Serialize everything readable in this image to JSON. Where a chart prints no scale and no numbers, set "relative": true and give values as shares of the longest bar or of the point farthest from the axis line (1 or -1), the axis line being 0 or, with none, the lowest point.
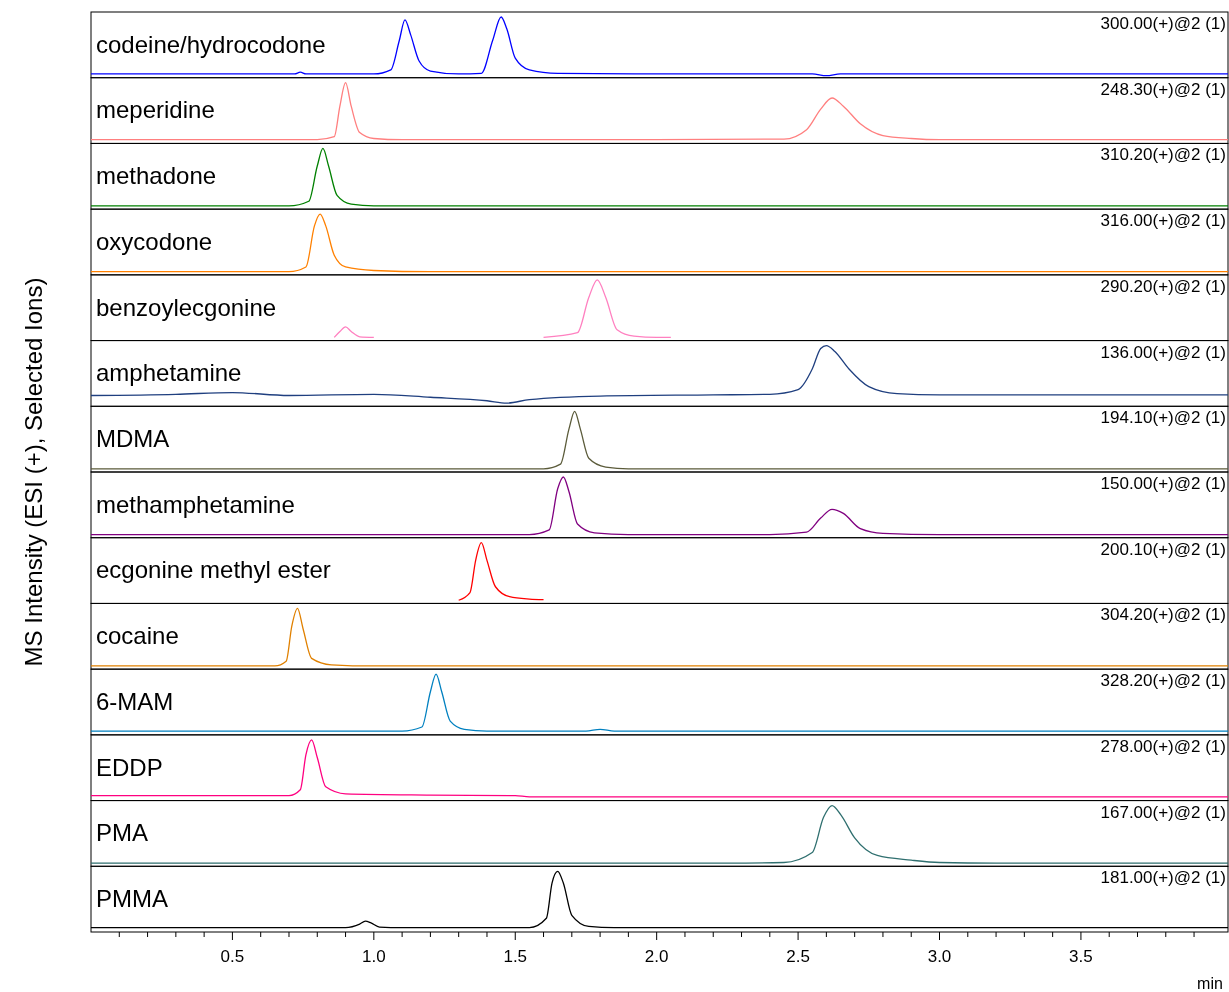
{
  "chart_data": [
    {
      "type": "line",
      "relative": true,
      "title": "codeine/hydrocodone",
      "annotations": [
        "300.00(+)@2 (1)"
      ],
      "color": "#0000ff",
      "xlim": [
        0,
        4.02
      ],
      "x": [
        0,
        0.5,
        0.72,
        0.74,
        0.76,
        1.0,
        1.06,
        1.09,
        1.11,
        1.13,
        1.16,
        1.2,
        1.3,
        1.38,
        1.42,
        1.45,
        1.47,
        1.5,
        1.55,
        1.65,
        2.0,
        2.55,
        2.6,
        2.65,
        3.0,
        4.02
      ],
      "values": [
        0.03,
        0.03,
        0.03,
        0.06,
        0.03,
        0.03,
        0.1,
        0.6,
        0.95,
        0.7,
        0.25,
        0.08,
        0.03,
        0.04,
        0.6,
        1.0,
        0.8,
        0.3,
        0.1,
        0.04,
        0.03,
        0.03,
        0.0,
        0.03,
        0.03,
        0.03
      ]
    },
    {
      "type": "line",
      "relative": true,
      "title": "meperidine",
      "annotations": [
        "248.30(+)@2 (1)"
      ],
      "color": "#ff7f7f",
      "xlim": [
        0,
        4.02
      ],
      "x": [
        0,
        0.8,
        0.86,
        0.88,
        0.9,
        0.92,
        0.95,
        1.0,
        1.1,
        2.0,
        2.45,
        2.53,
        2.58,
        2.62,
        2.66,
        2.72,
        2.8,
        2.9,
        3.0,
        4.02
      ],
      "values": [
        0.03,
        0.03,
        0.08,
        0.6,
        1.0,
        0.6,
        0.15,
        0.05,
        0.03,
        0.03,
        0.04,
        0.2,
        0.55,
        0.74,
        0.6,
        0.3,
        0.1,
        0.05,
        0.03,
        0.03
      ]
    },
    {
      "type": "line",
      "relative": true,
      "title": "methadone",
      "annotations": [
        "310.20(+)@2 (1)"
      ],
      "color": "#008000",
      "xlim": [
        0,
        4.02
      ],
      "x": [
        0,
        0.7,
        0.77,
        0.8,
        0.82,
        0.84,
        0.87,
        0.92,
        1.0,
        4.02
      ],
      "values": [
        0.02,
        0.02,
        0.1,
        0.7,
        1.0,
        0.7,
        0.2,
        0.05,
        0.02,
        0.02
      ]
    },
    {
      "type": "line",
      "relative": true,
      "title": "oxycodone",
      "annotations": [
        "316.00(+)@2 (1)"
      ],
      "color": "#ff8000",
      "xlim": [
        0,
        4.02
      ],
      "x": [
        0,
        0.7,
        0.76,
        0.79,
        0.81,
        0.83,
        0.86,
        0.9,
        1.0,
        1.2,
        4.02
      ],
      "values": [
        0.02,
        0.02,
        0.1,
        0.8,
        1.0,
        0.8,
        0.3,
        0.1,
        0.04,
        0.02,
        0.02
      ]
    },
    {
      "type": "line",
      "relative": true,
      "title": "benzoylecgonine",
      "annotations": [
        "290.20(+)@2 (1)"
      ],
      "color": "#ff80c0",
      "xlim": [
        0,
        4.02
      ],
      "x": [
        0.86,
        0.88,
        0.9,
        0.92,
        0.95,
        1.0,
        1.3,
        1.6,
        1.72,
        1.76,
        1.79,
        1.82,
        1.86,
        1.92,
        2.0,
        2.05
      ],
      "values": [
        0.02,
        0.12,
        0.2,
        0.12,
        0.03,
        0.02,
        null,
        0.02,
        0.1,
        0.7,
        1.0,
        0.7,
        0.15,
        0.04,
        0.02,
        0.02
      ]
    },
    {
      "type": "line",
      "relative": true,
      "title": "amphetamine",
      "annotations": [
        "136.00(+)@2 (1)"
      ],
      "color": "#1f3f7f",
      "xlim": [
        0,
        4.02
      ],
      "x": [
        0,
        0.3,
        0.5,
        0.7,
        1.0,
        1.2,
        1.4,
        1.47,
        1.55,
        1.8,
        2.2,
        2.4,
        2.5,
        2.55,
        2.58,
        2.6,
        2.63,
        2.68,
        2.75,
        2.85,
        3.0,
        3.5,
        4.02
      ],
      "values": [
        0.15,
        0.17,
        0.2,
        0.15,
        0.17,
        0.12,
        0.06,
        0.02,
        0.08,
        0.14,
        0.16,
        0.17,
        0.25,
        0.6,
        0.95,
        1.0,
        0.9,
        0.6,
        0.3,
        0.18,
        0.16,
        0.16,
        0.16
      ]
    },
    {
      "type": "line",
      "relative": true,
      "title": "MDMA",
      "ylabel": "MS Intensity (ESI (+), Selected Ions)",
      "annotations": [
        "194.10(+)@2 (1)"
      ],
      "color": "#5b5b3a",
      "xlim": [
        0,
        4.02
      ],
      "x": [
        0,
        1.6,
        1.66,
        1.69,
        1.71,
        1.73,
        1.76,
        1.82,
        1.9,
        4.02
      ],
      "values": [
        0.02,
        0.02,
        0.1,
        0.7,
        1.0,
        0.7,
        0.2,
        0.05,
        0.02,
        0.02
      ]
    },
    {
      "type": "line",
      "relative": true,
      "title": "methamphetamine",
      "annotations": [
        "150.00(+)@2 (1)"
      ],
      "color": "#800080",
      "xlim": [
        0,
        4.02
      ],
      "x": [
        0,
        1.55,
        1.62,
        1.65,
        1.67,
        1.69,
        1.72,
        1.78,
        1.9,
        2.4,
        2.53,
        2.58,
        2.62,
        2.66,
        2.72,
        2.8,
        3.0,
        4.02
      ],
      "values": [
        0.02,
        0.02,
        0.1,
        0.8,
        1.0,
        0.75,
        0.2,
        0.05,
        0.02,
        0.02,
        0.06,
        0.3,
        0.45,
        0.38,
        0.12,
        0.04,
        0.02,
        0.02
      ]
    },
    {
      "type": "line",
      "relative": true,
      "title": "ecgonine methyl ester",
      "annotations": [
        "200.10(+)@2 (1)"
      ],
      "color": "#ff0000",
      "xlim": [
        0,
        4.02
      ],
      "x": [
        1.3,
        1.34,
        1.36,
        1.38,
        1.4,
        1.43,
        1.48,
        1.55,
        1.6
      ],
      "values": [
        0.02,
        0.15,
        0.7,
        1.0,
        0.7,
        0.25,
        0.08,
        0.04,
        0.03
      ]
    },
    {
      "type": "line",
      "relative": true,
      "title": "cocaine",
      "annotations": [
        "304.20(+)@2 (1)"
      ],
      "color": "#e08000",
      "xlim": [
        0,
        4.02
      ],
      "x": [
        0,
        0.65,
        0.69,
        0.71,
        0.73,
        0.75,
        0.78,
        0.85,
        1.0,
        4.02
      ],
      "values": [
        0.02,
        0.02,
        0.1,
        0.7,
        1.0,
        0.65,
        0.15,
        0.04,
        0.02,
        0.02
      ]
    },
    {
      "type": "line",
      "relative": true,
      "title": "6-MAM",
      "annotations": [
        "328.20(+)@2 (1)"
      ],
      "color": "#0080c0",
      "xlim": [
        0,
        4.02
      ],
      "x": [
        0,
        1.1,
        1.17,
        1.2,
        1.22,
        1.24,
        1.27,
        1.32,
        1.4,
        1.75,
        1.8,
        1.85,
        4.02
      ],
      "values": [
        0.03,
        0.03,
        0.1,
        0.7,
        1.0,
        0.7,
        0.2,
        0.06,
        0.03,
        0.03,
        0.06,
        0.03,
        0.03
      ]
    },
    {
      "type": "line",
      "relative": true,
      "title": "EDDP",
      "annotations": [
        "278.00(+)@2 (1)"
      ],
      "color": "#ff0080",
      "xlim": [
        0,
        4.02
      ],
      "x": [
        0,
        0.7,
        0.74,
        0.76,
        0.78,
        0.8,
        0.83,
        0.9,
        1.2,
        1.5,
        1.55,
        4.02
      ],
      "values": [
        0.05,
        0.05,
        0.15,
        0.75,
        1.0,
        0.7,
        0.2,
        0.08,
        0.06,
        0.05,
        0.03,
        0.03
      ]
    },
    {
      "type": "line",
      "relative": true,
      "title": "PMA",
      "annotations": [
        "167.00(+)@2 (1)"
      ],
      "color": "#2f6f6f",
      "xlim": [
        0,
        4.02
      ],
      "x": [
        0,
        2.25,
        2.45,
        2.55,
        2.59,
        2.62,
        2.65,
        2.7,
        2.78,
        2.9,
        3.0,
        3.2,
        4.02
      ],
      "values": [
        0.02,
        0.02,
        0.03,
        0.2,
        0.8,
        1.0,
        0.85,
        0.45,
        0.15,
        0.07,
        0.03,
        0.02,
        0.02
      ]
    },
    {
      "type": "line",
      "relative": true,
      "title": "PMMA",
      "annotations": [
        "181.00(+)@2 (1)"
      ],
      "color": "#000000",
      "xlim": [
        0,
        4.02
      ],
      "xlabel": "min",
      "x": [
        0,
        0.9,
        0.95,
        0.97,
        0.99,
        1.02,
        1.1,
        1.55,
        1.61,
        1.63,
        1.65,
        1.67,
        1.7,
        1.76,
        1.85,
        4.02
      ],
      "values": [
        0.04,
        0.04,
        0.1,
        0.15,
        0.12,
        0.05,
        0.04,
        0.04,
        0.2,
        0.8,
        1.0,
        0.8,
        0.25,
        0.06,
        0.04,
        0.04
      ],
      "xticks": [
        {
          "value": 0.1,
          "label": null
        },
        {
          "value": 0.2,
          "label": null
        },
        {
          "value": 0.3,
          "label": null
        },
        {
          "value": 0.4,
          "label": null
        },
        {
          "value": 0.5,
          "label": "0.5"
        },
        {
          "value": 0.6,
          "label": null
        },
        {
          "value": 0.7,
          "label": null
        },
        {
          "value": 0.8,
          "label": null
        },
        {
          "value": 0.9,
          "label": null
        },
        {
          "value": 1.0,
          "label": "1.0"
        },
        {
          "value": 1.1,
          "label": null
        },
        {
          "value": 1.2,
          "label": null
        },
        {
          "value": 1.3,
          "label": null
        },
        {
          "value": 1.4,
          "label": null
        },
        {
          "value": 1.5,
          "label": "1.5"
        },
        {
          "value": 1.6,
          "label": null
        },
        {
          "value": 1.7,
          "label": null
        },
        {
          "value": 1.8,
          "label": null
        },
        {
          "value": 1.9,
          "label": null
        },
        {
          "value": 2.0,
          "label": "2.0"
        },
        {
          "value": 2.1,
          "label": null
        },
        {
          "value": 2.2,
          "label": null
        },
        {
          "value": 2.3,
          "label": null
        },
        {
          "value": 2.4,
          "label": null
        },
        {
          "value": 2.5,
          "label": "2.5"
        },
        {
          "value": 2.6,
          "label": null
        },
        {
          "value": 2.7,
          "label": null
        },
        {
          "value": 2.8,
          "label": null
        },
        {
          "value": 2.9,
          "label": null
        },
        {
          "value": 3.0,
          "label": "3.0"
        },
        {
          "value": 3.1,
          "label": null
        },
        {
          "value": 3.2,
          "label": null
        },
        {
          "value": 3.3,
          "label": null
        },
        {
          "value": 3.4,
          "label": null
        },
        {
          "value": 3.5,
          "label": "3.5"
        },
        {
          "value": 3.6,
          "label": null
        },
        {
          "value": 3.7,
          "label": null
        },
        {
          "value": 3.8,
          "label": null
        },
        {
          "value": 3.9,
          "label": null
        }
      ]
    }
  ]
}
